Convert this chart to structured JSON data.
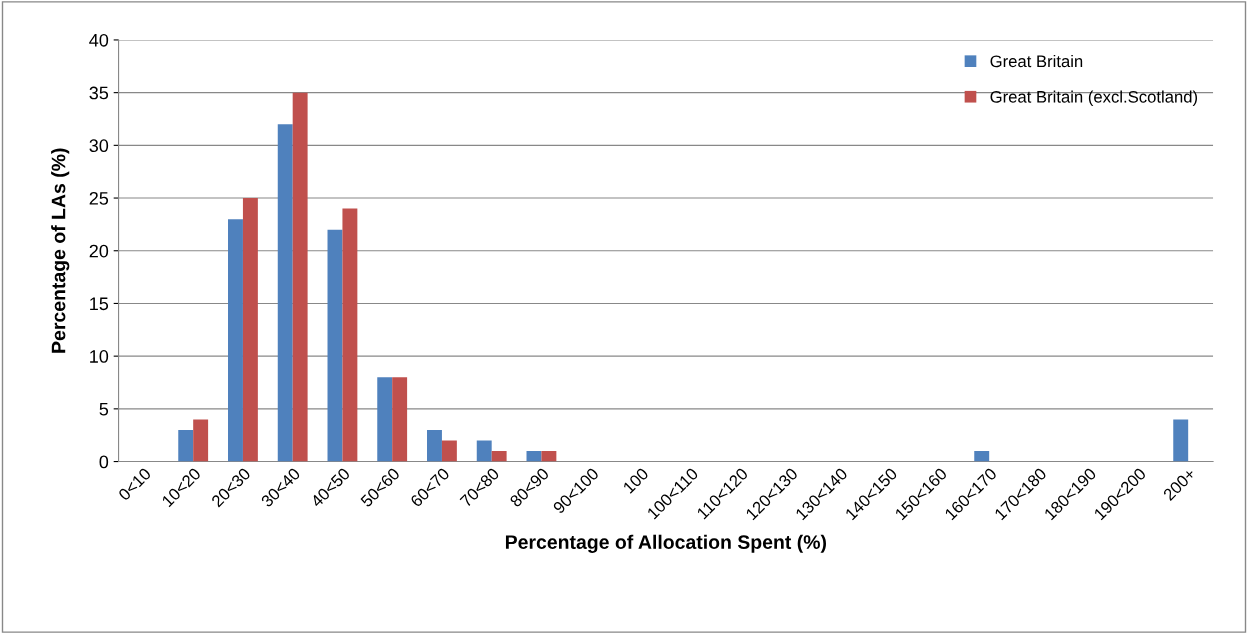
{
  "chart_data": {
    "type": "bar",
    "xlabel": "Percentage of Allocation Spent (%)",
    "ylabel": "Percentage of LAs (%)",
    "categories": [
      "0<10",
      "10<20",
      "20<30",
      "30<40",
      "40<50",
      "50<60",
      "60<70",
      "70<80",
      "80<90",
      "90<100",
      "100",
      "100<110",
      "110<120",
      "120<130",
      "130<140",
      "140<150",
      "150<160",
      "160<170",
      "170<180",
      "180<190",
      "190<200",
      "200+"
    ],
    "series": [
      {
        "name": "Great Britain",
        "color": "#4f81bd",
        "values": [
          0,
          3,
          23,
          32,
          22,
          8,
          3,
          2,
          1,
          0,
          0,
          0,
          0,
          0,
          0,
          0,
          0,
          1,
          0,
          0,
          0,
          4
        ]
      },
      {
        "name": "Great Britain (excl.Scotland)",
        "color": "#c0504d",
        "values": [
          0,
          4,
          25,
          35,
          24,
          8,
          2,
          1,
          1,
          0,
          0,
          0,
          0,
          0,
          0,
          0,
          0,
          0,
          0,
          0,
          0,
          0
        ]
      }
    ],
    "ylim": [
      0,
      40
    ],
    "yticks": [
      0,
      5,
      10,
      15,
      20,
      25,
      30,
      35,
      40
    ],
    "grid": "y",
    "legend": "top right"
  }
}
